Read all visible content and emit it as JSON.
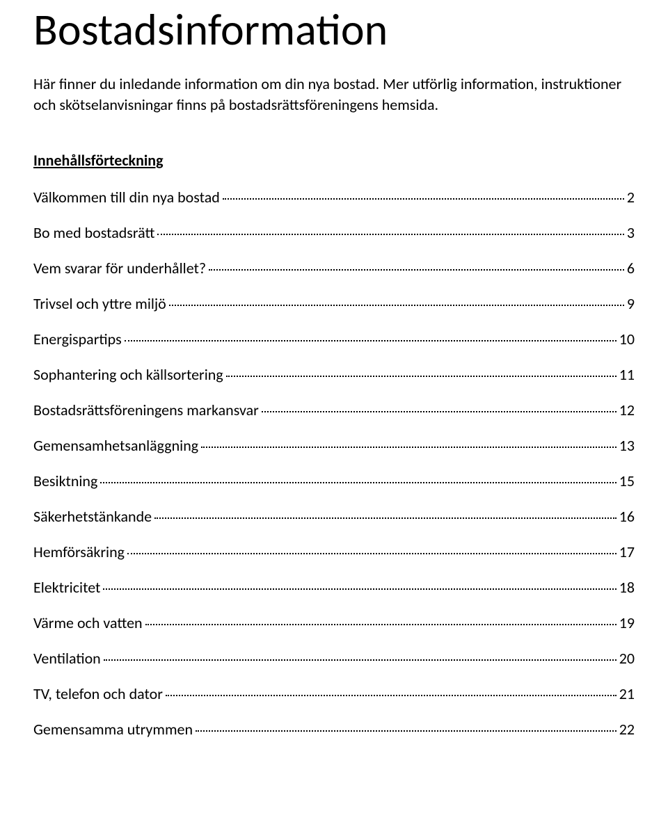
{
  "title": "Bostadsinformation",
  "intro": "Här finner du inledande information om din nya bostad. Mer utförlig information, instruktioner och skötselanvisningar finns på bostadsrättsföreningens hemsida.",
  "toc_heading": "Innehållsförteckning",
  "toc": [
    {
      "label": "Välkommen till din nya bostad",
      "page": "2"
    },
    {
      "label": "Bo med bostadsrätt",
      "page": "3"
    },
    {
      "label": "Vem svarar för underhållet?",
      "page": "6"
    },
    {
      "label": "Trivsel och yttre miljö",
      "page": "9"
    },
    {
      "label": "Energispartips",
      "page": "10"
    },
    {
      "label": "Sophantering och källsortering",
      "page": "11"
    },
    {
      "label": "Bostadsrättsföreningens markansvar",
      "page": "12"
    },
    {
      "label": "Gemensamhetsanläggning",
      "page": "13"
    },
    {
      "label": "Besiktning",
      "page": "15"
    },
    {
      "label": "Säkerhetstänkande",
      "page": "16"
    },
    {
      "label": "Hemförsäkring",
      "page": "17"
    },
    {
      "label": "Elektricitet",
      "page": "18"
    },
    {
      "label": "Värme och vatten",
      "page": "19"
    },
    {
      "label": "Ventilation",
      "page": "20"
    },
    {
      "label": "TV, telefon och dator",
      "page": "21"
    },
    {
      "label": "Gemensamma utrymmen",
      "page": "22"
    }
  ],
  "colors": {
    "text": "#000000",
    "background": "#ffffff"
  }
}
